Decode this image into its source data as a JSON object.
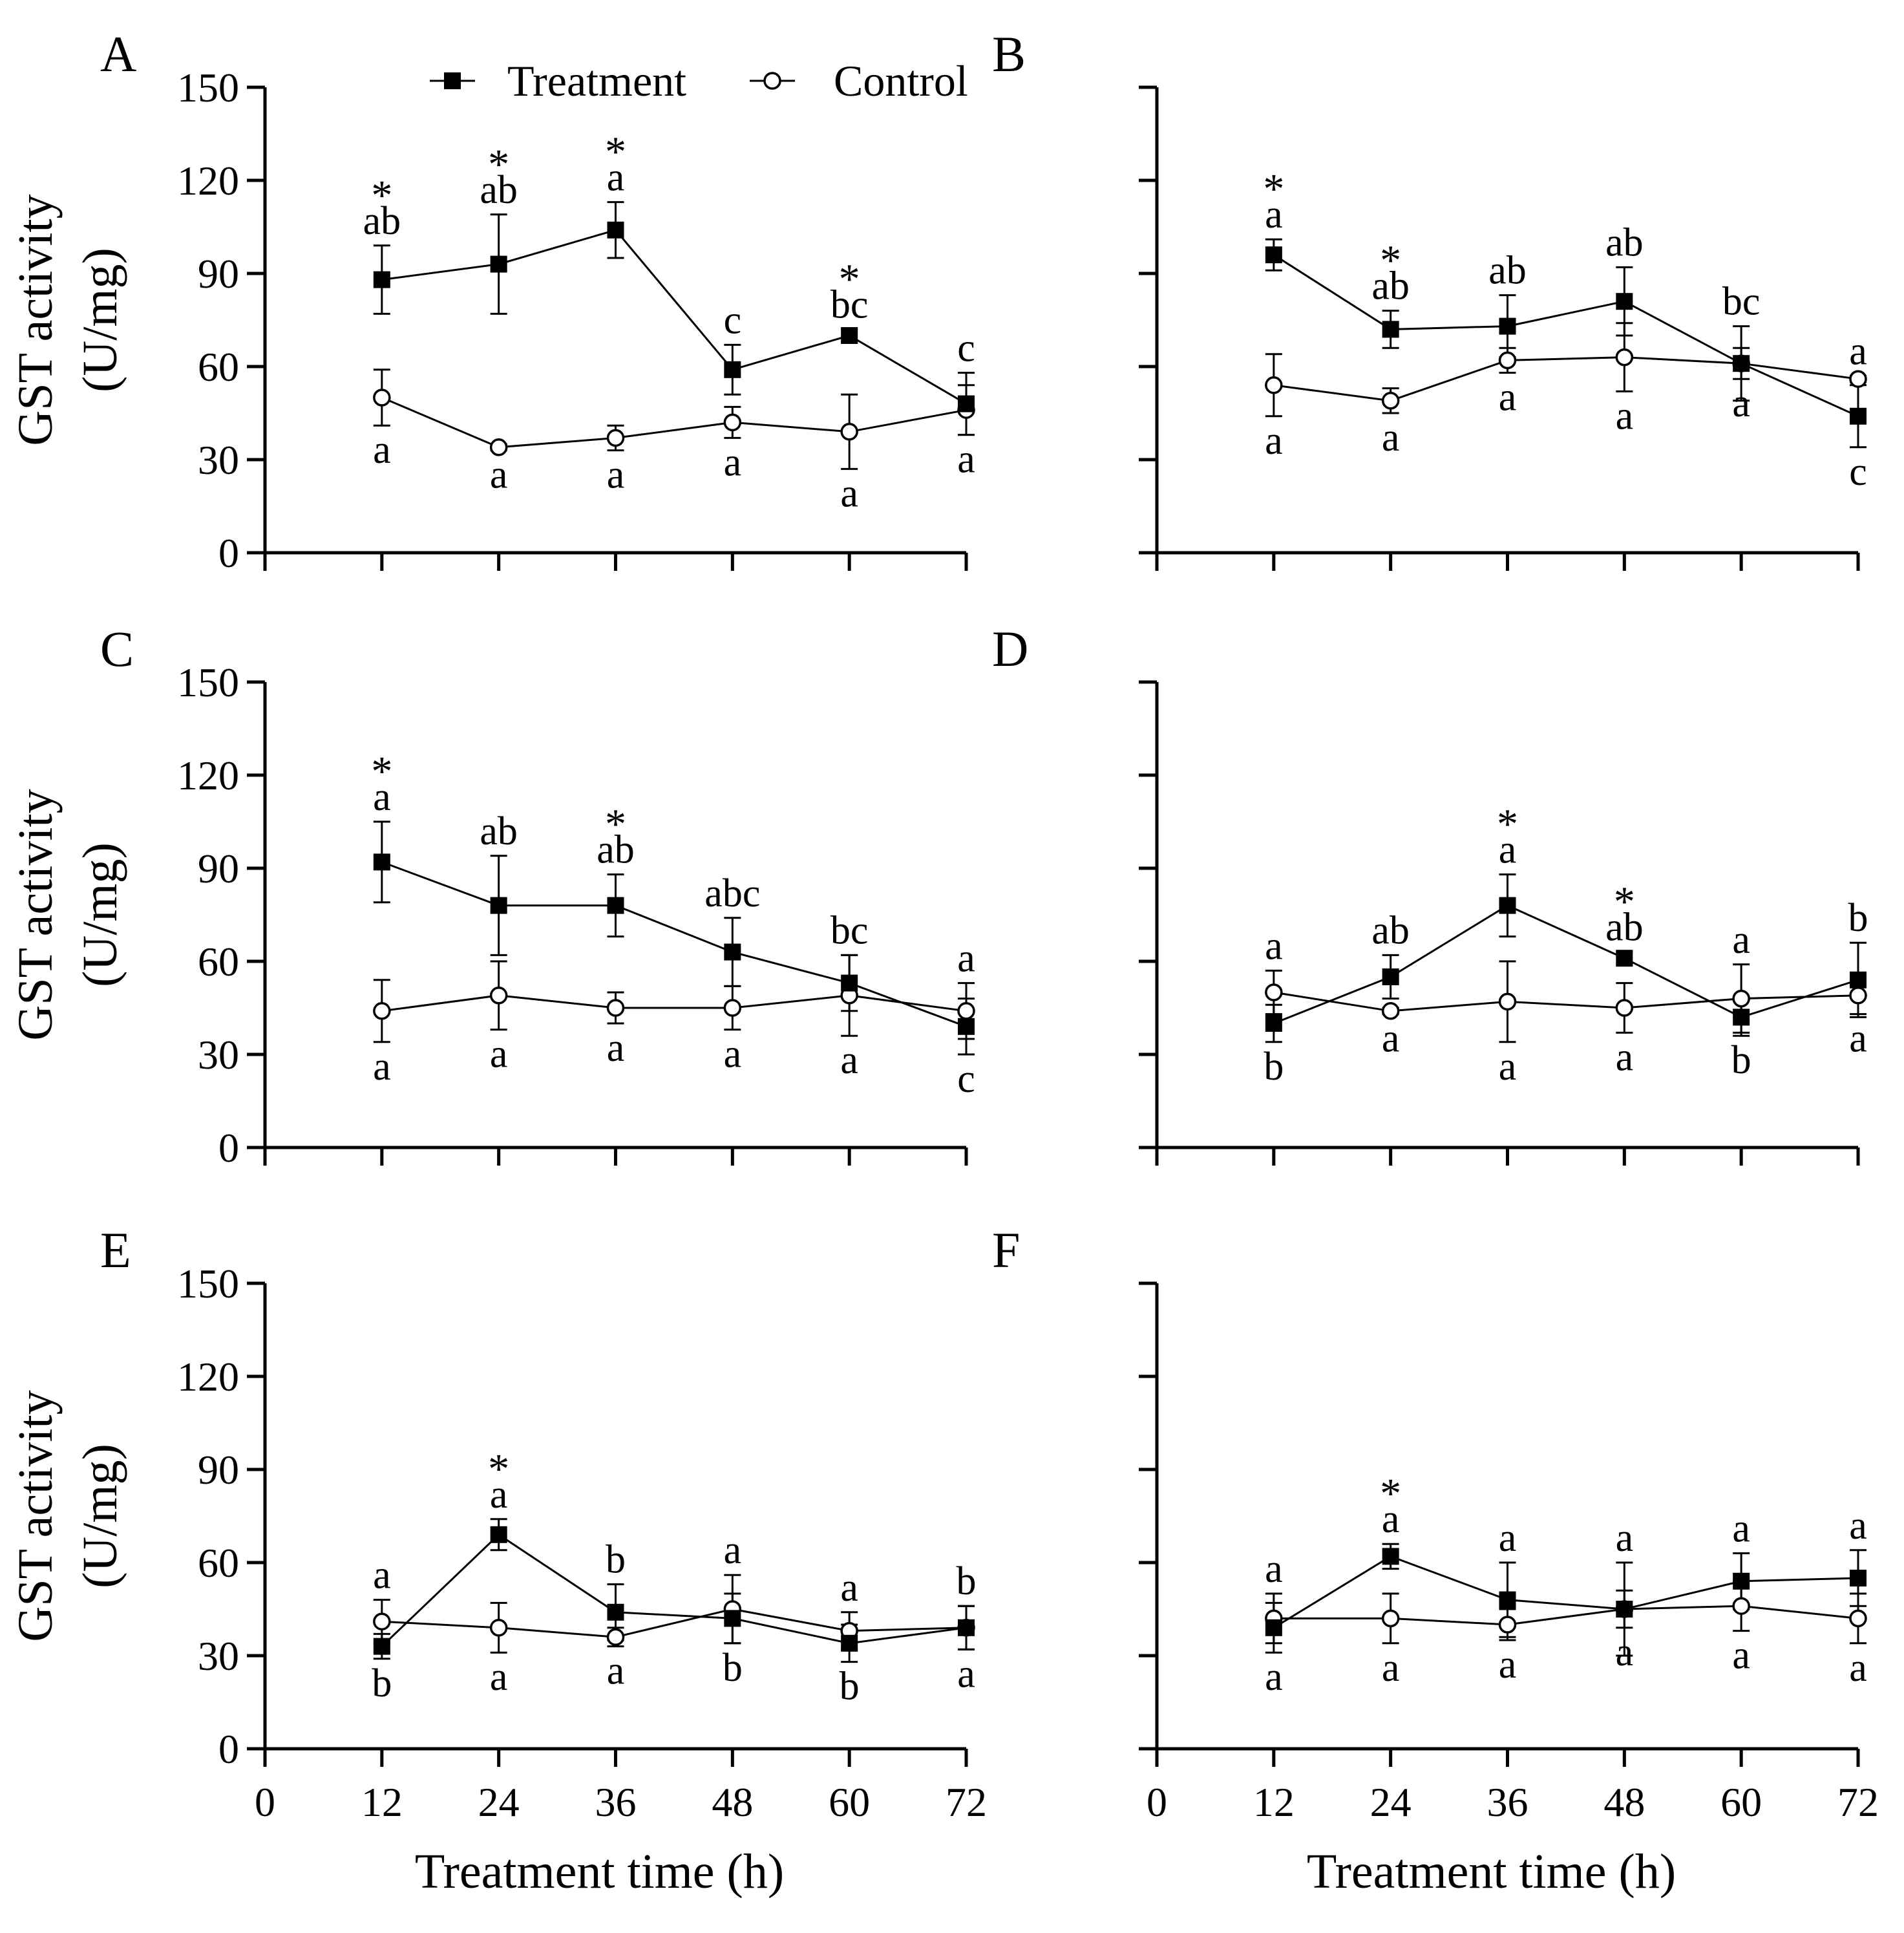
{
  "chart_data": {
    "type": "line",
    "ylabel_line1": "GST activity",
    "ylabel_line2": "(U/mg)",
    "xlabel": "Treatment time (h)",
    "xticks": [
      0,
      12,
      24,
      36,
      48,
      60,
      72
    ],
    "yticks": [
      0,
      30,
      60,
      90,
      120,
      150
    ],
    "xlim": [
      0,
      72
    ],
    "ylim": [
      0,
      150
    ],
    "x": [
      12,
      24,
      36,
      48,
      60,
      72
    ],
    "legend": {
      "position": "top",
      "entries": [
        {
          "name": "Treatment",
          "marker": "filled-square"
        },
        {
          "name": "Control",
          "marker": "open-circle"
        }
      ]
    },
    "colors": {
      "line": "#000000",
      "marker_fill": "#000000",
      "background": "#ffffff"
    },
    "panels": [
      {
        "label": "A",
        "treatment": {
          "values": [
            88,
            93,
            104,
            59,
            70,
            48
          ],
          "errors": [
            11,
            16,
            9,
            8,
            2,
            10
          ],
          "letters": [
            "ab",
            "ab",
            "a",
            "c",
            "bc",
            "c"
          ],
          "stars": [
            true,
            true,
            true,
            false,
            true,
            false
          ]
        },
        "control": {
          "values": [
            50,
            34,
            37,
            42,
            39,
            46
          ],
          "errors": [
            9,
            1,
            4,
            5,
            12,
            8
          ],
          "letters": [
            "a",
            "a",
            "a",
            "a",
            "a",
            "a"
          ]
        }
      },
      {
        "label": "B",
        "treatment": {
          "values": [
            96,
            72,
            73,
            81,
            61,
            44
          ],
          "errors": [
            5,
            6,
            10,
            11,
            12,
            10
          ],
          "letters": [
            "a",
            "ab",
            "ab",
            "ab",
            "bc",
            "c"
          ],
          "stars": [
            true,
            true,
            false,
            false,
            false,
            false
          ]
        },
        "control": {
          "values": [
            54,
            49,
            62,
            63,
            61,
            56
          ],
          "errors": [
            10,
            4,
            4,
            11,
            5,
            1
          ],
          "letters": [
            "a",
            "a",
            "a",
            "a",
            "a",
            "a"
          ]
        }
      },
      {
        "label": "C",
        "treatment": {
          "values": [
            92,
            78,
            78,
            63,
            53,
            39
          ],
          "errors": [
            13,
            16,
            10,
            11,
            9,
            9
          ],
          "letters": [
            "a",
            "ab",
            "ab",
            "abc",
            "bc",
            "c"
          ],
          "stars": [
            true,
            false,
            true,
            false,
            false,
            false
          ]
        },
        "control": {
          "values": [
            44,
            49,
            45,
            45,
            49,
            44
          ],
          "errors": [
            10,
            11,
            5,
            7,
            13,
            9
          ],
          "letters": [
            "a",
            "a",
            "a",
            "a",
            "a",
            "a"
          ]
        }
      },
      {
        "label": "D",
        "treatment": {
          "values": [
            40,
            55,
            78,
            61,
            42,
            54
          ],
          "errors": [
            6,
            7,
            10,
            2,
            6,
            12
          ],
          "letters": [
            "b",
            "ab",
            "a",
            "ab",
            "b",
            "b"
          ],
          "stars": [
            false,
            false,
            true,
            true,
            false,
            false
          ]
        },
        "control": {
          "values": [
            50,
            44,
            47,
            45,
            48,
            49
          ],
          "errors": [
            7,
            1,
            13,
            8,
            11,
            6
          ],
          "letters": [
            "a",
            "a",
            "a",
            "a",
            "a",
            "a"
          ]
        }
      },
      {
        "label": "E",
        "treatment": {
          "values": [
            33,
            69,
            44,
            42,
            34,
            39
          ],
          "errors": [
            4,
            5,
            9,
            8,
            6,
            7
          ],
          "letters": [
            "b",
            "a",
            "b",
            "b",
            "b",
            "b"
          ],
          "stars": [
            false,
            true,
            false,
            false,
            false,
            false
          ]
        },
        "control": {
          "values": [
            41,
            39,
            36,
            45,
            38,
            39
          ],
          "errors": [
            7,
            8,
            3,
            11,
            6,
            7
          ],
          "letters": [
            "a",
            "a",
            "a",
            "a",
            "a",
            "a"
          ]
        }
      },
      {
        "label": "F",
        "treatment": {
          "values": [
            39,
            62,
            48,
            45,
            54,
            55
          ],
          "errors": [
            8,
            4,
            12,
            15,
            9,
            9
          ],
          "letters": [
            "a",
            "a",
            "a",
            "a",
            "a",
            "a"
          ],
          "stars": [
            false,
            true,
            false,
            false,
            false,
            false
          ]
        },
        "control": {
          "values": [
            42,
            42,
            40,
            45,
            46,
            42
          ],
          "errors": [
            8,
            8,
            5,
            6,
            8,
            8
          ],
          "letters": [
            "a",
            "a",
            "a",
            "a",
            "a",
            "a"
          ]
        }
      }
    ]
  }
}
